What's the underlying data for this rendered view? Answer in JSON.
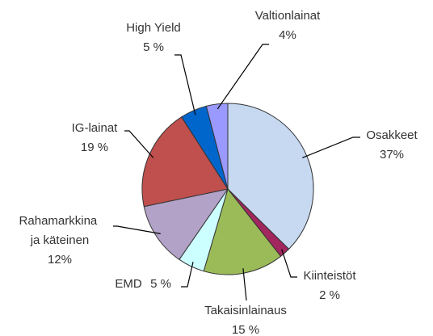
{
  "chart_data": {
    "type": "pie",
    "categories": [
      "Osakkeet",
      "Kiinteistöt",
      "Takaisinlainaus",
      "EMD",
      "Rahamarkkina ja käteinen",
      "IG-lainat",
      "High Yield",
      "Valtionlainat"
    ],
    "values": [
      37,
      2,
      15,
      5,
      12,
      19,
      5,
      4
    ],
    "value_labels": [
      "37%",
      "2 %",
      "15 %",
      "5 %",
      "12%",
      "19 %",
      "5 %",
      "4%"
    ],
    "colors": [
      "#c6d9f1",
      "#a2275e",
      "#9bbb59",
      "#ccffff",
      "#b3a2c7",
      "#c0504d",
      "#0066cc",
      "#9999ff"
    ]
  }
}
